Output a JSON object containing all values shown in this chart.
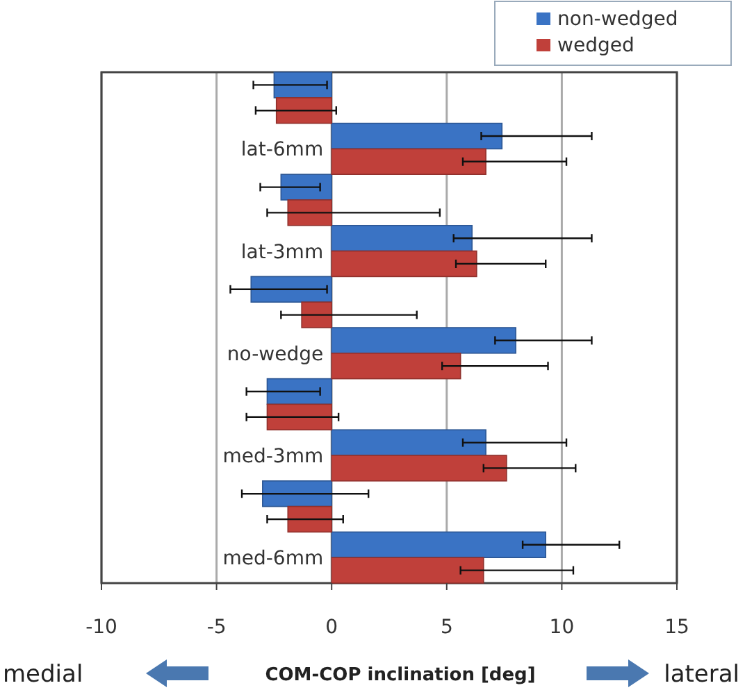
{
  "chart_data": {
    "type": "bar",
    "orientation": "horizontal",
    "xlabel": "COM-COP inclination [deg]",
    "categories": [
      null,
      "lat-6mm",
      null,
      "lat-3mm",
      null,
      "no-wedge",
      null,
      "med-3mm",
      null,
      "med-6mm"
    ],
    "series": [
      {
        "name": "non-wedged",
        "color": "#3a73c4",
        "values": [
          -2.5,
          7.4,
          -2.2,
          6.1,
          -3.5,
          8.0,
          -2.8,
          6.7,
          -3.0,
          9.3
        ],
        "errors": [
          [
            -3.4,
            -0.2
          ],
          [
            6.5,
            11.3
          ],
          [
            -3.1,
            -0.5
          ],
          [
            5.3,
            11.3
          ],
          [
            -4.4,
            -0.2
          ],
          [
            7.1,
            11.3
          ],
          [
            -3.7,
            -0.5
          ],
          [
            5.7,
            10.2
          ],
          [
            -3.9,
            1.6
          ],
          [
            8.3,
            12.5
          ]
        ]
      },
      {
        "name": "wedged",
        "color": "#c0403a",
        "values": [
          -2.4,
          6.7,
          -1.9,
          6.3,
          -1.3,
          5.6,
          -2.8,
          7.6,
          -1.9,
          6.6
        ],
        "errors": [
          [
            -3.3,
            0.2
          ],
          [
            5.7,
            10.2
          ],
          [
            -2.8,
            4.7
          ],
          [
            5.4,
            9.3
          ],
          [
            -2.2,
            3.7
          ],
          [
            4.8,
            9.4
          ],
          [
            -3.7,
            0.3
          ],
          [
            6.6,
            10.6
          ],
          [
            -2.8,
            0.5
          ],
          [
            5.6,
            10.5
          ]
        ]
      }
    ],
    "xlim": [
      -10,
      15
    ],
    "xticks": [
      -10,
      -5,
      0,
      5,
      10,
      15
    ],
    "grid": "x",
    "legend": "top right",
    "annotations": [
      "medial",
      "lateral"
    ]
  }
}
